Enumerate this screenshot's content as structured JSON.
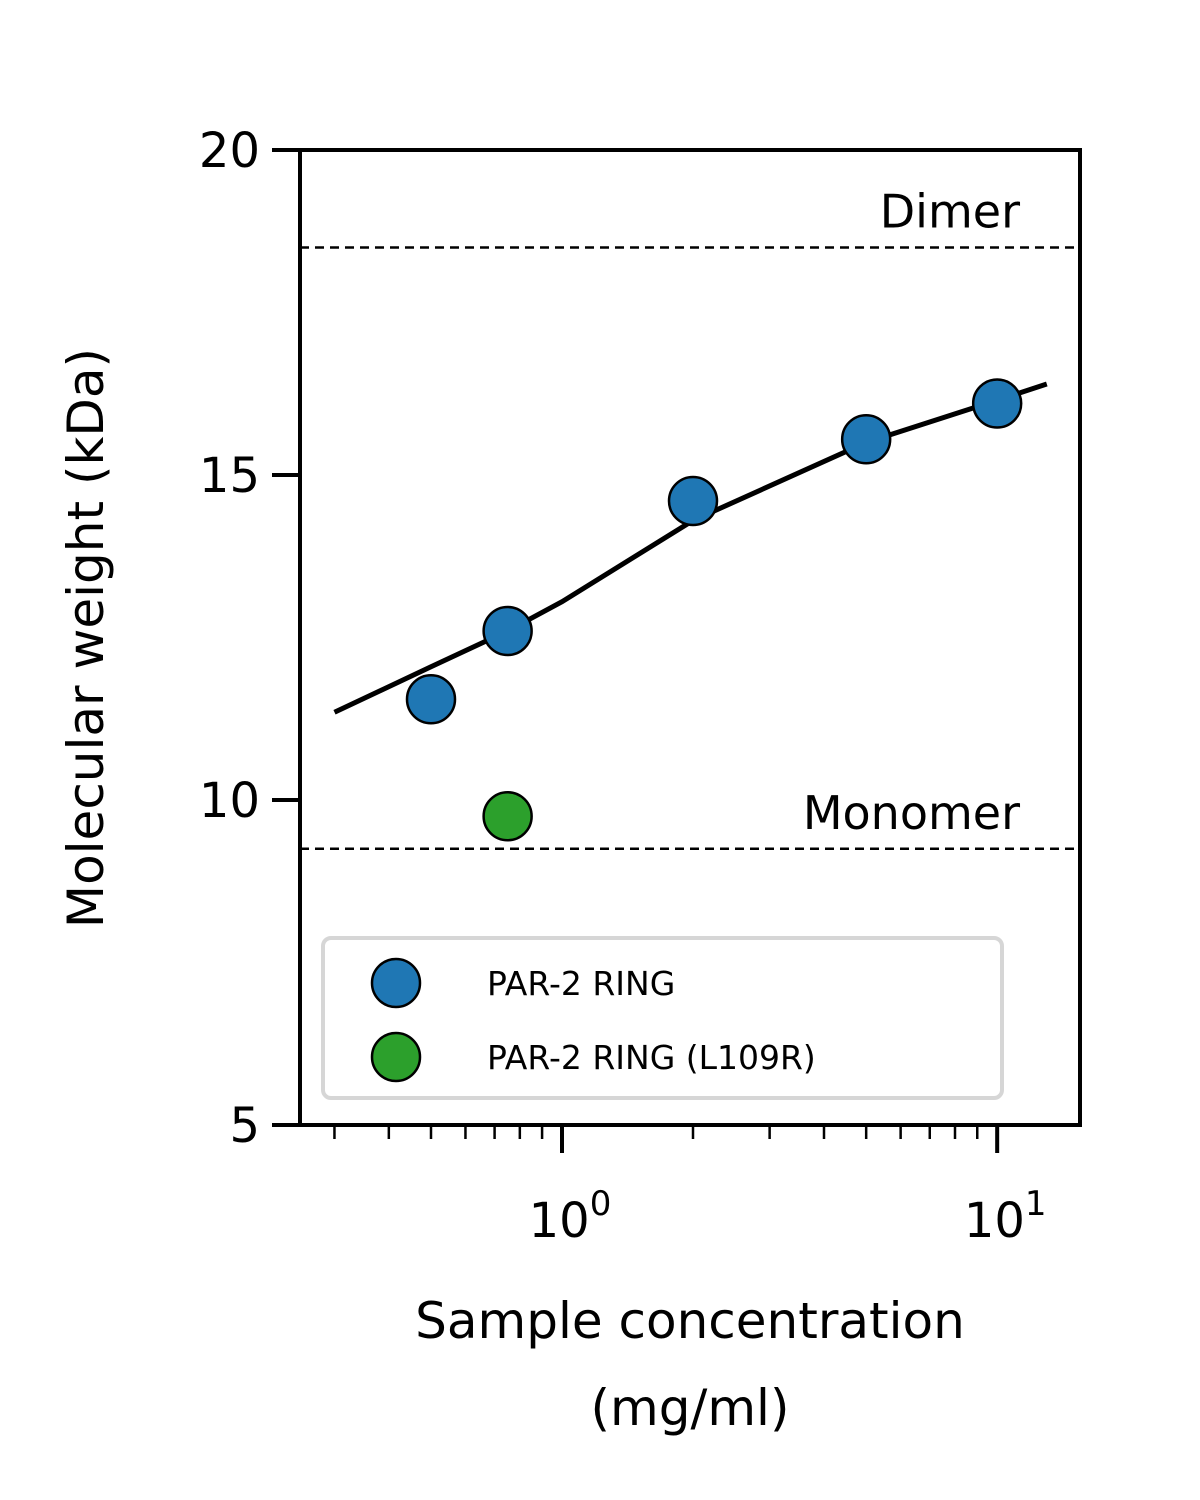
{
  "chart_data": {
    "type": "scatter",
    "xlabel_line1": "Sample concentration",
    "xlabel_line2": "(mg/ml)",
    "ylabel": "Molecular weight (kDa)",
    "x_scale": "log",
    "xlim": [
      0.25,
      15.5
    ],
    "ylim": [
      5,
      20
    ],
    "x_ticks": [
      {
        "base": "10",
        "exp": "0",
        "value": 1
      },
      {
        "base": "10",
        "exp": "1",
        "value": 10
      }
    ],
    "y_ticks": [
      {
        "label": "5",
        "value": 5
      },
      {
        "label": "10",
        "value": 10
      },
      {
        "label": "15",
        "value": 15
      },
      {
        "label": "20",
        "value": 20
      }
    ],
    "series": [
      {
        "name": "PAR-2 RING",
        "color": "#1f77b4",
        "x": [
          0.5,
          0.75,
          2.0,
          5.0,
          10.0
        ],
        "y": [
          11.55,
          12.6,
          14.6,
          15.55,
          16.1
        ]
      },
      {
        "name": "PAR-2 RING (L109R)",
        "color": "#2ca02c",
        "x": [
          0.75
        ],
        "y": [
          9.75
        ]
      }
    ],
    "fit_line": {
      "color": "#000000",
      "x": [
        0.3,
        0.5,
        0.75,
        1.0,
        2.0,
        5.0,
        10.0,
        13.0
      ],
      "y": [
        11.35,
        12.05,
        12.6,
        13.05,
        14.3,
        15.5,
        16.15,
        16.4
      ]
    },
    "reference_lines": [
      {
        "label": "Dimer",
        "y": 18.5
      },
      {
        "label": "Monomer",
        "y": 9.25
      }
    ],
    "grid": false,
    "legend_position": "lower-left"
  }
}
